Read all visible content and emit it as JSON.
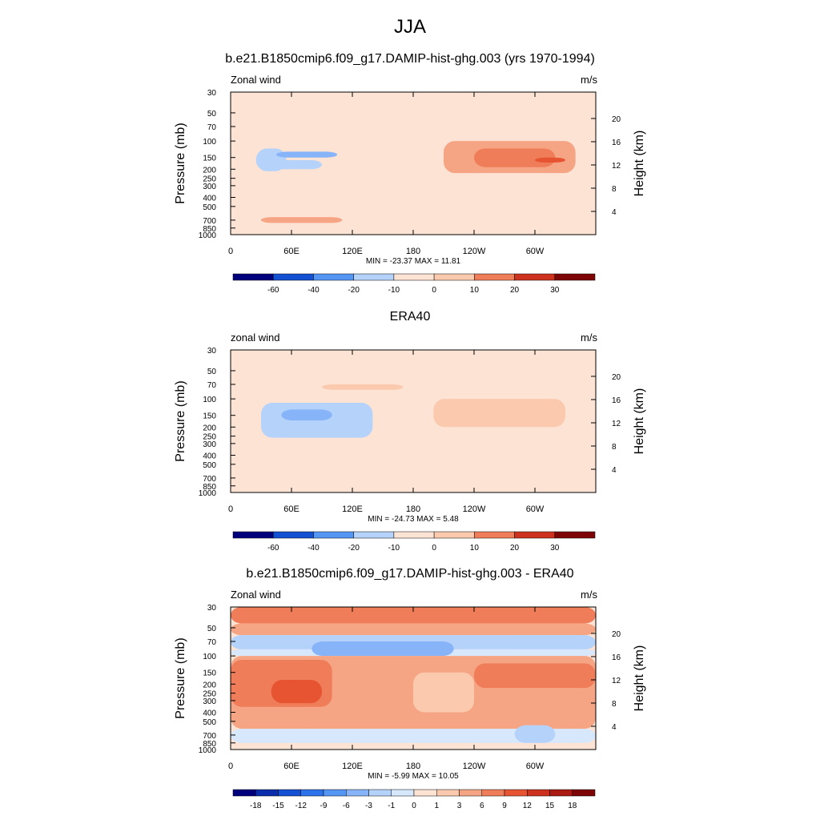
{
  "figure_title": "JJA",
  "colors": {
    "panel_fill": "#fde3d4",
    "neg": [
      "#00007d",
      "#0a2dab",
      "#1450d2",
      "#2d73eb",
      "#5596f5",
      "#87b4f8",
      "#b4d2fa",
      "#d7e8fc"
    ],
    "pos": [
      "#fde3d4",
      "#fbc9ae",
      "#f6a584",
      "#f07d59",
      "#e65432",
      "#cd321e",
      "#aa1a10",
      "#7d0505"
    ]
  },
  "chart_data": [
    {
      "type": "heatmap",
      "title": "b.e21.B1850cmip6.f09_g17.DAMIP-hist-ghg.003 (yrs 1970-1994)",
      "left_label": "Zonal wind",
      "right_label": "m/s",
      "xlabel": "",
      "ylabel": "Pressure (mb)",
      "y2label": "Height (km)",
      "xlim": [
        0,
        360
      ],
      "x_ticks": [
        "0",
        "60E",
        "120E",
        "180",
        "120W",
        "60W"
      ],
      "y_ticks": [
        "30",
        "50",
        "70",
        "100",
        "150",
        "200",
        "250",
        "300",
        "400",
        "500",
        "700",
        "850",
        "1000"
      ],
      "y2_ticks": [
        "20",
        "16",
        "12",
        "8",
        "4"
      ],
      "stats": "MIN = -23.37  MAX =  11.81",
      "colorbar_labels": [
        "-60",
        "-40",
        "-20",
        "-10",
        "0",
        "10",
        "20",
        "30"
      ],
      "field": [
        {
          "lon": [
            25,
            55
          ],
          "p": [
            120,
            210
          ],
          "level": -2
        },
        {
          "lon": [
            45,
            105
          ],
          "p": [
            130,
            150
          ],
          "level": -3
        },
        {
          "lon": [
            35,
            90
          ],
          "p": [
            160,
            200
          ],
          "level": -2
        },
        {
          "lon": [
            210,
            340
          ],
          "p": [
            100,
            220
          ],
          "level": 2
        },
        {
          "lon": [
            240,
            320
          ],
          "p": [
            120,
            190
          ],
          "level": 3
        },
        {
          "lon": [
            300,
            330
          ],
          "p": [
            150,
            170
          ],
          "level": 4
        },
        {
          "lon": [
            30,
            110
          ],
          "p": [
            650,
            750
          ],
          "level": 2
        }
      ]
    },
    {
      "type": "heatmap",
      "title": "ERA40",
      "left_label": "zonal wind",
      "right_label": "m/s",
      "xlabel": "",
      "ylabel": "Pressure (mb)",
      "y2label": "Height (km)",
      "xlim": [
        0,
        360
      ],
      "x_ticks": [
        "0",
        "60E",
        "120E",
        "180",
        "120W",
        "60W"
      ],
      "y_ticks": [
        "30",
        "50",
        "70",
        "100",
        "150",
        "200",
        "250",
        "300",
        "400",
        "500",
        "700",
        "850",
        "1000"
      ],
      "y2_ticks": [
        "20",
        "16",
        "12",
        "8",
        "4"
      ],
      "stats": "MIN = -24.73  MAX =   5.48",
      "colorbar_labels": [
        "-60",
        "-40",
        "-20",
        "-10",
        "0",
        "10",
        "20",
        "30"
      ],
      "field": [
        {
          "lon": [
            30,
            140
          ],
          "p": [
            110,
            260
          ],
          "level": -2
        },
        {
          "lon": [
            50,
            100
          ],
          "p": [
            130,
            170
          ],
          "level": -3
        },
        {
          "lon": [
            200,
            330
          ],
          "p": [
            100,
            200
          ],
          "level": 1
        },
        {
          "lon": [
            90,
            170
          ],
          "p": [
            70,
            80
          ],
          "level": 1
        }
      ]
    },
    {
      "type": "heatmap",
      "title": "b.e21.B1850cmip6.f09_g17.DAMIP-hist-ghg.003 - ERA40",
      "left_label": "Zonal wind",
      "right_label": "m/s",
      "xlabel": "",
      "ylabel": "Pressure (mb)",
      "y2label": "Height (km)",
      "xlim": [
        0,
        360
      ],
      "x_ticks": [
        "0",
        "60E",
        "120E",
        "180",
        "120W",
        "60W"
      ],
      "y_ticks": [
        "30",
        "50",
        "70",
        "100",
        "150",
        "200",
        "250",
        "300",
        "400",
        "500",
        "700",
        "850",
        "1000"
      ],
      "y2_ticks": [
        "20",
        "16",
        "12",
        "8",
        "4"
      ],
      "stats": "MIN =  -5.99  MAX =  10.05",
      "colorbar_labels": [
        "-18",
        "-15",
        "-12",
        "-9",
        "-6",
        "-3",
        "-1",
        "0",
        "1",
        "3",
        "6",
        "9",
        "12",
        "15",
        "18"
      ],
      "field": [
        {
          "lon": [
            0,
            360
          ],
          "p": [
            30,
            45
          ],
          "level": 3
        },
        {
          "lon": [
            0,
            360
          ],
          "p": [
            45,
            60
          ],
          "level": 2
        },
        {
          "lon": [
            0,
            360
          ],
          "p": [
            60,
            85
          ],
          "level": -2
        },
        {
          "lon": [
            0,
            360
          ],
          "p": [
            85,
            100
          ],
          "level": -1
        },
        {
          "lon": [
            80,
            220
          ],
          "p": [
            70,
            100
          ],
          "level": -3
        },
        {
          "lon": [
            0,
            360
          ],
          "p": [
            100,
            600
          ],
          "level": 2
        },
        {
          "lon": [
            0,
            100
          ],
          "p": [
            110,
            350
          ],
          "level": 3
        },
        {
          "lon": [
            40,
            90
          ],
          "p": [
            180,
            320
          ],
          "level": 4
        },
        {
          "lon": [
            240,
            360
          ],
          "p": [
            120,
            220
          ],
          "level": 3
        },
        {
          "lon": [
            180,
            240
          ],
          "p": [
            150,
            400
          ],
          "level": 1
        },
        {
          "lon": [
            0,
            360
          ],
          "p": [
            600,
            850
          ],
          "level": -1
        },
        {
          "lon": [
            280,
            320
          ],
          "p": [
            550,
            850
          ],
          "level": -2
        }
      ]
    }
  ]
}
